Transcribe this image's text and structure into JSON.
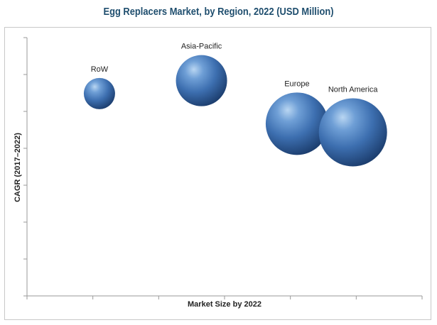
{
  "chart_data": {
    "type": "bubble",
    "title": "Egg Replacers Market, by Region, 2022 (USD Million)",
    "xlabel": "Market Size by 2022",
    "ylabel": "CAGR (2017–2022)",
    "tick_labels_shown": false,
    "x_ticks": 6,
    "y_ticks": 7,
    "grid": false,
    "bubble_color": "#4a7fc0",
    "series": [
      {
        "name": "RoW",
        "x": 1.1,
        "y": 4.7,
        "size": 0.22
      },
      {
        "name": "Asia-Pacific",
        "x": 2.65,
        "y": 5.0,
        "size": 0.36
      },
      {
        "name": "Europe",
        "x": 4.1,
        "y": 4.0,
        "size": 0.44
      },
      {
        "name": "North America",
        "x": 4.95,
        "y": 3.8,
        "size": 0.48
      }
    ],
    "xlim": [
      0,
      6
    ],
    "ylim": [
      0,
      6
    ]
  }
}
